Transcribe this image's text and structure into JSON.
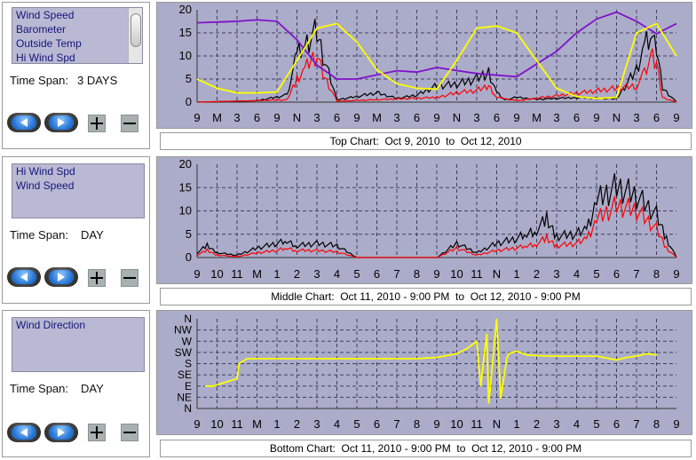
{
  "panels": [
    {
      "items": [
        "Wind Speed",
        "Barometer",
        "Outside Temp",
        "Hi Wind Spd"
      ],
      "timespan_label": "Time Span:",
      "timespan_value": "3 DAYS",
      "caption": "Top Chart:  Oct 9, 2010  to  Oct 12, 2010"
    },
    {
      "items": [
        "Hi Wind Spd",
        "Wind Speed"
      ],
      "timespan_label": "Time Span:",
      "timespan_value": "DAY",
      "caption": "Middle Chart:  Oct 11, 2010 - 9:00 PM  to  Oct 12, 2010 - 9:00 PM"
    },
    {
      "items": [
        "Wind Direction"
      ],
      "timespan_label": "Time Span:",
      "timespan_value": "DAY",
      "caption": "Bottom Chart:  Oct 11, 2010 - 9:00 PM  to  Oct 12, 2010 - 9:00 PM"
    }
  ],
  "icons": {
    "prev": "play-left-icon",
    "next": "play-right-icon",
    "zoom_in": "plus-icon",
    "zoom_out": "minus-icon"
  },
  "colors": {
    "plot_bg": "#abacc9",
    "grid": "#404060",
    "wind_speed": "#000000",
    "hi_wind": "#ff0000",
    "barometer": "#7f12c8",
    "temp": "#ffff00",
    "direction": "#ffff00"
  },
  "chart_data": [
    {
      "type": "line",
      "ylim": [
        0,
        20
      ],
      "yticks": [
        0,
        5,
        10,
        15,
        20
      ],
      "xticks": [
        "9",
        "M",
        "3",
        "6",
        "9",
        "N",
        "3",
        "6",
        "9",
        "M",
        "3",
        "6",
        "9",
        "N",
        "3",
        "6",
        "9",
        "M",
        "3",
        "6",
        "9",
        "N",
        "3",
        "6",
        "9"
      ],
      "series": [
        {
          "name": "Wind Speed",
          "color": "#000000",
          "x": [
            0,
            3,
            4.5,
            5,
            5.4,
            5.7,
            6,
            6.3,
            7,
            8,
            9,
            10,
            11,
            12,
            13,
            14,
            14.6,
            15,
            15.4,
            16,
            17,
            19,
            21,
            22,
            22.4,
            22.8,
            23,
            23.3,
            24
          ],
          "values": [
            0,
            0.3,
            1.5,
            10,
            12,
            14,
            15,
            10,
            0.5,
            1.2,
            2,
            0.8,
            1.5,
            3.5,
            3.8,
            5,
            6.5,
            2,
            0.5,
            1,
            0.6,
            1,
            0.7,
            7,
            12,
            14,
            11,
            3,
            0
          ]
        },
        {
          "name": "Hi Wind Spd",
          "color": "#ff0000",
          "x": [
            0,
            4.5,
            5,
            5.4,
            5.7,
            6,
            6.3,
            7,
            12,
            13,
            14,
            14.6,
            15,
            16,
            22,
            22.4,
            22.8,
            23,
            23.3,
            24
          ],
          "values": [
            0,
            0.5,
            5,
            7,
            9,
            10,
            6,
            0.2,
            1,
            2,
            2.5,
            3.5,
            1,
            0.3,
            3.5,
            6,
            10,
            8,
            1,
            0
          ],
          "note": "Hi Wind Spd shown as red overlay"
        },
        {
          "name": "Barometer",
          "color": "#7f12c8",
          "x": [
            0,
            2,
            3,
            4,
            5,
            6,
            7,
            8,
            10,
            11,
            12,
            14,
            16,
            18,
            19,
            20,
            21,
            22,
            23,
            24
          ],
          "values": [
            17.2,
            17.5,
            17.8,
            17.5,
            13.5,
            8,
            5,
            5,
            6.8,
            6.5,
            7.5,
            6.2,
            5.5,
            11,
            15,
            18,
            19.5,
            17.5,
            14.8,
            17
          ]
        },
        {
          "name": "Outside Temp",
          "color": "#ffff00",
          "x": [
            0,
            1,
            2,
            3,
            4,
            5,
            6,
            7,
            8,
            9,
            10,
            11,
            12,
            13,
            14,
            15,
            16,
            17,
            18,
            19,
            20,
            21,
            22,
            23,
            24
          ],
          "values": [
            5,
            3,
            2,
            2,
            2.2,
            9,
            16,
            17,
            13,
            7,
            4,
            3,
            2.8,
            9,
            16,
            16.5,
            15,
            9,
            3,
            1.2,
            0.8,
            1,
            15,
            17,
            10
          ]
        }
      ]
    },
    {
      "type": "line",
      "ylim": [
        0,
        20
      ],
      "yticks": [
        0,
        5,
        10,
        15,
        20
      ],
      "xticks": [
        "9",
        "10",
        "11",
        "M",
        "1",
        "2",
        "3",
        "4",
        "5",
        "6",
        "7",
        "8",
        "9",
        "10",
        "11",
        "N",
        "1",
        "2",
        "3",
        "4",
        "5",
        "6",
        "7",
        "8",
        "9"
      ],
      "series": [
        {
          "name": "Hi Wind Spd",
          "color": "#000000",
          "x": [
            0,
            0.5,
            1,
            2,
            3,
            4,
            4.5,
            5,
            6,
            7,
            8,
            9,
            9.5,
            10,
            11,
            12,
            13,
            14,
            15,
            16,
            16.5,
            17,
            17.5,
            18,
            19,
            19.5,
            20,
            21,
            22,
            23,
            23.5,
            24
          ],
          "values": [
            1,
            2.5,
            1,
            0.5,
            2,
            3,
            3.5,
            2.5,
            3,
            2.5,
            0,
            0,
            0,
            0,
            0,
            0,
            3,
            1,
            3,
            4,
            5,
            6,
            8,
            4.5,
            5,
            6,
            12,
            15,
            13,
            9,
            4,
            0
          ]
        },
        {
          "name": "Wind Speed",
          "color": "#ff0000",
          "x": [
            0,
            0.5,
            1,
            2,
            3,
            4,
            4.5,
            5,
            6,
            7,
            8,
            9,
            9.5,
            10,
            11,
            12,
            13,
            14,
            15,
            16,
            16.5,
            17,
            17.5,
            18,
            19,
            19.5,
            20,
            21,
            22,
            23,
            23.5,
            24
          ],
          "values": [
            0.5,
            1.5,
            0.5,
            0.2,
            1,
            1.5,
            2,
            1.5,
            1.5,
            1.2,
            0,
            0,
            0,
            0,
            0,
            0,
            2,
            0.5,
            1.5,
            2,
            2.5,
            3,
            4,
            2.5,
            3,
            4,
            8,
            11,
            10,
            6,
            2,
            0
          ]
        }
      ]
    },
    {
      "type": "line",
      "categories_y": [
        "N",
        "NE",
        "E",
        "SE",
        "S",
        "SW",
        "W",
        "NW",
        "N"
      ],
      "ylim": [
        0,
        360
      ],
      "xticks": [
        "9",
        "10",
        "11",
        "M",
        "1",
        "2",
        "3",
        "4",
        "5",
        "6",
        "7",
        "8",
        "9",
        "10",
        "11",
        "N",
        "1",
        "2",
        "3",
        "4",
        "5",
        "6",
        "7",
        "8",
        "9"
      ],
      "series": [
        {
          "name": "Wind Direction",
          "color": "#ffff00",
          "x": [
            0.4,
            0.8,
            2,
            2.1,
            2.5,
            3,
            5,
            6,
            8,
            10,
            11,
            12,
            13,
            13.5,
            14,
            14.2,
            14.5,
            14.6,
            15,
            15.2,
            15.5,
            15.6,
            16,
            16.5,
            17,
            18,
            19,
            20,
            21,
            21.5,
            22,
            22.5,
            23
          ],
          "values": [
            90,
            90,
            120,
            180,
            200,
            200,
            200,
            200,
            200,
            200,
            200,
            205,
            220,
            240,
            270,
            90,
            300,
            20,
            360,
            40,
            200,
            220,
            230,
            215,
            212,
            210,
            210,
            210,
            195,
            205,
            210,
            220,
            215
          ]
        }
      ]
    }
  ]
}
